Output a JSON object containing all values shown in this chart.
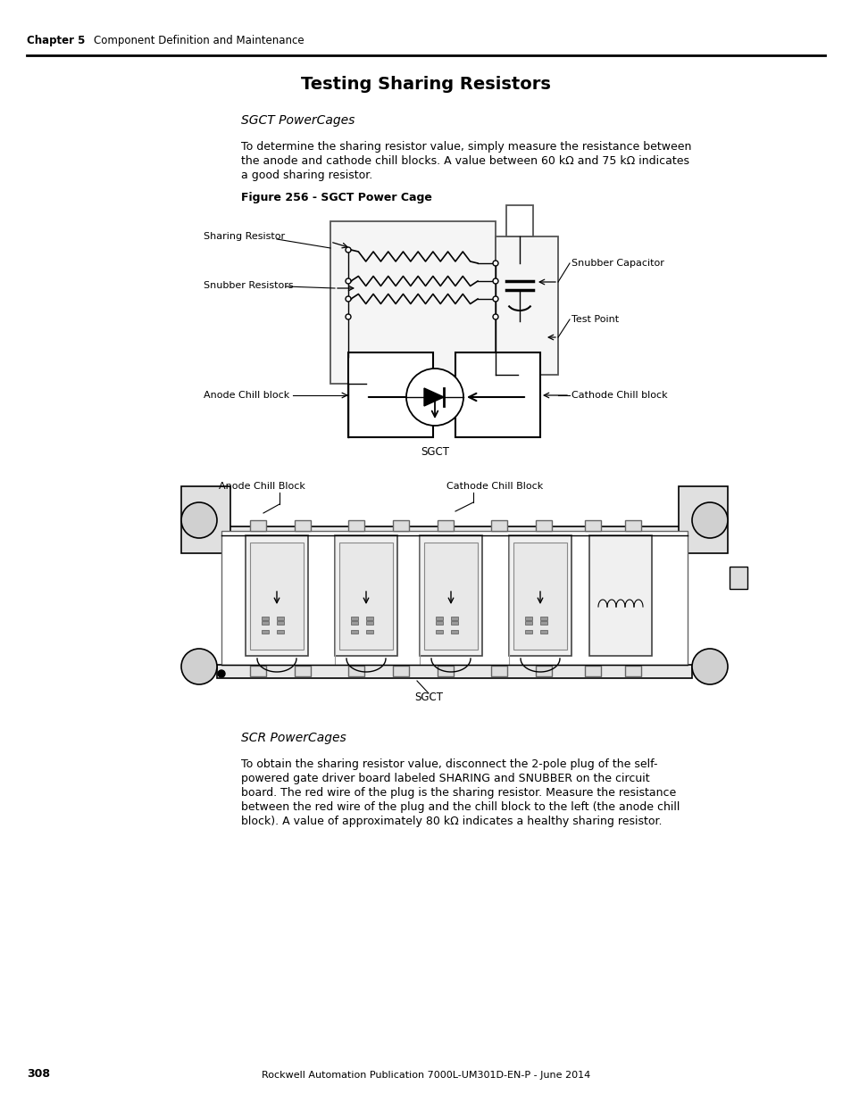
{
  "page_title": "Testing Sharing Resistors",
  "chapter_header": "Chapter 5",
  "chapter_subheader": "Component Definition and Maintenance",
  "footer_page": "308",
  "footer_center": "Rockwell Automation Publication 7000L-UM301D-EN-P - June 2014",
  "section1_title": "SGCT PowerCages",
  "section1_body1": "To determine the sharing resistor value, simply measure the resistance between",
  "section1_body2": "the anode and cathode chill blocks. A value between 60 kΩ and 75 kΩ indicates",
  "section1_body3": "a good sharing resistor.",
  "figure1_caption": "Figure 256 - SGCT Power Cage",
  "section2_title": "SCR PowerCages",
  "section2_body1": "To obtain the sharing resistor value, disconnect the 2-pole plug of the self-",
  "section2_body2": "powered gate driver board labeled SHARING and SNUBBER on the circuit",
  "section2_body3": "board. The red wire of the plug is the sharing resistor. Measure the resistance",
  "section2_body4": "between the red wire of the plug and the chill block to the left (the anode chill",
  "section2_body5": "block). A value of approximately 80 kΩ indicates a healthy sharing resistor.",
  "bg_color": "#ffffff",
  "text_color": "#000000"
}
